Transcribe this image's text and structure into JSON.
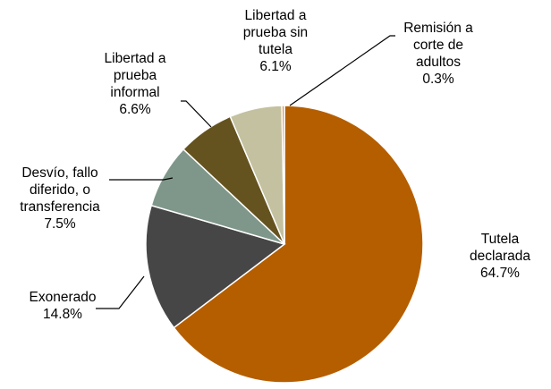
{
  "chart_data": {
    "type": "pie",
    "categories": [
      "Tutela declarada",
      "Exonerado",
      "Desvío, fallo diferido, o transferencia",
      "Libertad a prueba informal",
      "Libertad a prueba sin tutela",
      "Remisión a corte de adultos"
    ],
    "values": [
      64.7,
      14.8,
      7.5,
      6.6,
      6.1,
      0.3
    ],
    "value_labels": [
      "64.7%",
      "14.8%",
      "7.5%",
      "6.6%",
      "6.1%",
      "0.3%"
    ],
    "label_lines": [
      [
        "Tutela",
        "declarada"
      ],
      [
        "Exonerado"
      ],
      [
        "Desvío, fallo",
        "diferido, o",
        "transferencia"
      ],
      [
        "Libertad a",
        "prueba",
        "informal"
      ],
      [
        "Libertad a",
        "prueba sin",
        "tutela"
      ],
      [
        "Remisión a",
        "corte de",
        "adultos"
      ]
    ],
    "colors": [
      "#b55e00",
      "#464646",
      "#7f978a",
      "#65531f",
      "#c3c19f",
      "#d89a5c"
    ],
    "legend": "none",
    "title": ""
  }
}
